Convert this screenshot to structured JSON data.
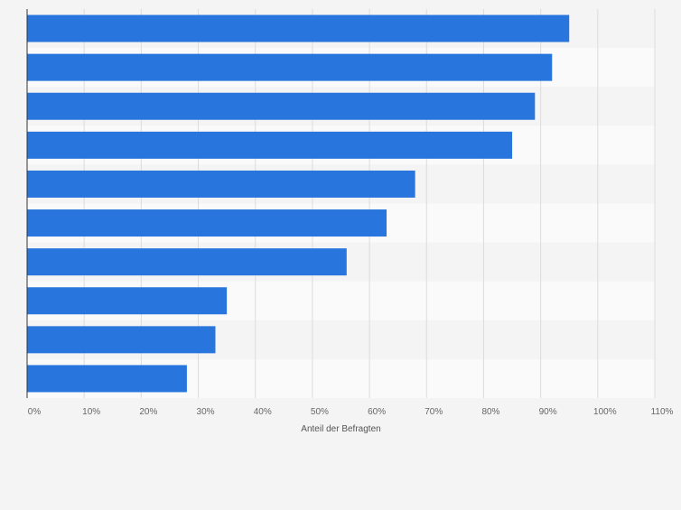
{
  "chart_data": {
    "type": "bar",
    "orientation": "horizontal",
    "categories": [
      "",
      "",
      "",
      "",
      "",
      "",
      "",
      "",
      "",
      ""
    ],
    "values": [
      95,
      92,
      89,
      85,
      68,
      63,
      56,
      35,
      33,
      28
    ],
    "xlabel": "Anteil der Befragten",
    "ylabel": "",
    "xlim": [
      0,
      110
    ],
    "xticks": [
      0,
      10,
      20,
      30,
      40,
      50,
      60,
      70,
      80,
      90,
      100,
      110
    ],
    "tick_labels": [
      "0%",
      "10%",
      "20%",
      "30%",
      "40%",
      "50%",
      "60%",
      "70%",
      "80%",
      "90%",
      "100%",
      "110%"
    ],
    "grid": true,
    "bar_color": "#2876dd",
    "band_colors": [
      "#f4f4f4",
      "#fafafa"
    ]
  }
}
